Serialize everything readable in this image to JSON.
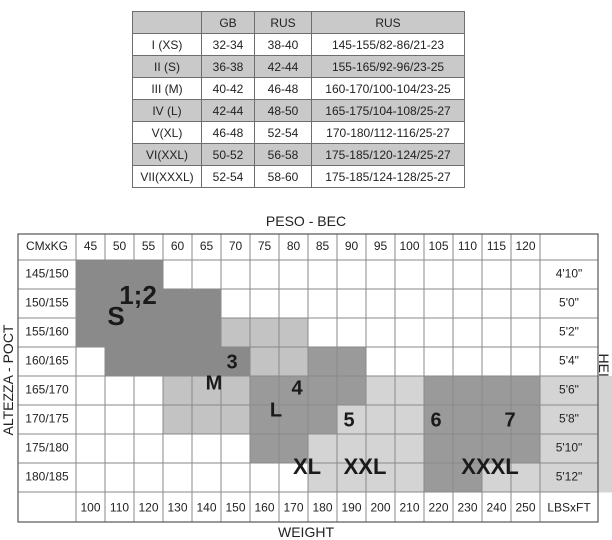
{
  "size_table": {
    "headers": [
      "",
      "GB",
      "RUS",
      "RUS"
    ],
    "rows": [
      [
        "I (XS)",
        "32-34",
        "38-40",
        "145-155/82-86/21-23"
      ],
      [
        "II (S)",
        "36-38",
        "42-44",
        "155-165/92-96/23-25"
      ],
      [
        "III (M)",
        "40-42",
        "46-48",
        "160-170/100-104/23-25"
      ],
      [
        "IV (L)",
        "42-44",
        "48-50",
        "165-175/104-108/25-27"
      ],
      [
        "V(XL)",
        "46-48",
        "52-54",
        "170-180/112-116/25-27"
      ],
      [
        "VI(XXL)",
        "50-52",
        "56-58",
        "175-185/120-124/25-27"
      ],
      [
        "VII(XXXL)",
        "52-54",
        "58-60",
        "175-185/124-128/25-27"
      ]
    ]
  },
  "chart": {
    "top_title": "PESO - BEC",
    "bottom_title": "WEIGHT",
    "left_title": "ALTEZZA - POCT",
    "right_title": "HEIGHT",
    "corner_top_left": "CMxKG",
    "corner_bottom_right": "LBSxFT",
    "weights_kg": [
      "45",
      "50",
      "55",
      "60",
      "65",
      "70",
      "75",
      "80",
      "85",
      "90",
      "95",
      "100",
      "105",
      "110",
      "115",
      "120"
    ],
    "weights_lbs": [
      "100",
      "110",
      "120",
      "130",
      "140",
      "150",
      "160",
      "170",
      "180",
      "190",
      "200",
      "210",
      "220",
      "230",
      "240",
      "250"
    ],
    "heights_cm": [
      "145/150",
      "150/155",
      "155/160",
      "160/165",
      "165/170",
      "170/175",
      "175/180",
      "180/185"
    ],
    "heights_ft": [
      "4'10\"",
      "5'0\"",
      "5'2\"",
      "5'4\"",
      "5'6\"",
      "5'8\"",
      "5'10\"",
      "5'12\""
    ],
    "colors": {
      "dark": "#8a8a8a",
      "mid": "#9a9a9a",
      "light": "#c3c3c3",
      "lighter": "#d4d4d4"
    },
    "zones": [
      {
        "label": "1;2",
        "sub": "S",
        "shade": "dark",
        "cells": [
          [
            0,
            0
          ],
          [
            0,
            1
          ],
          [
            0,
            2
          ],
          [
            1,
            0
          ],
          [
            1,
            1
          ],
          [
            1,
            2
          ],
          [
            1,
            3
          ],
          [
            1,
            4
          ],
          [
            2,
            0
          ],
          [
            2,
            1
          ],
          [
            2,
            2
          ],
          [
            2,
            3
          ],
          [
            2,
            4
          ],
          [
            3,
            1
          ],
          [
            3,
            2
          ],
          [
            3,
            3
          ],
          [
            3,
            4
          ],
          [
            3,
            5
          ]
        ]
      },
      {
        "label": "3",
        "sub": "M",
        "shade": "light",
        "cells": [
          [
            2,
            5
          ],
          [
            2,
            6
          ],
          [
            2,
            7
          ],
          [
            3,
            6
          ],
          [
            3,
            7
          ],
          [
            4,
            3
          ],
          [
            4,
            4
          ],
          [
            4,
            5
          ],
          [
            5,
            3
          ],
          [
            5,
            4
          ],
          [
            5,
            5
          ]
        ]
      },
      {
        "label": "4",
        "sub": "L",
        "shade": "mid",
        "cells": [
          [
            3,
            8
          ],
          [
            3,
            9
          ],
          [
            4,
            6
          ],
          [
            4,
            7
          ],
          [
            4,
            8
          ],
          [
            4,
            9
          ],
          [
            5,
            6
          ],
          [
            5,
            7
          ],
          [
            5,
            8
          ],
          [
            6,
            6
          ],
          [
            6,
            7
          ]
        ]
      },
      {
        "label": "5",
        "sub": "XL",
        "shade": "lighter",
        "cells": [
          [
            4,
            10
          ],
          [
            4,
            11
          ],
          [
            5,
            9
          ],
          [
            5,
            10
          ],
          [
            5,
            11
          ],
          [
            6,
            8
          ],
          [
            6,
            9
          ],
          [
            6,
            10
          ],
          [
            6,
            11
          ],
          [
            7,
            8
          ],
          [
            7,
            9
          ],
          [
            7,
            10
          ],
          [
            7,
            11
          ]
        ]
      },
      {
        "label": "6",
        "sub": "XXL",
        "shade": "mid",
        "cells": [
          [
            4,
            12
          ],
          [
            4,
            13
          ],
          [
            4,
            14
          ],
          [
            4,
            15
          ],
          [
            5,
            12
          ],
          [
            5,
            13
          ],
          [
            5,
            14
          ],
          [
            5,
            15
          ],
          [
            6,
            12
          ],
          [
            6,
            13
          ],
          [
            6,
            14
          ],
          [
            6,
            15
          ],
          [
            7,
            12
          ],
          [
            7,
            13
          ]
        ]
      },
      {
        "label": "7",
        "sub": "XXXL",
        "shade": "lighter",
        "cells": [
          [
            4,
            16
          ],
          [
            4,
            17
          ],
          [
            4,
            18
          ],
          [
            5,
            16
          ],
          [
            5,
            17
          ],
          [
            5,
            18
          ],
          [
            6,
            16
          ],
          [
            6,
            17
          ],
          [
            6,
            18
          ],
          [
            7,
            14
          ],
          [
            7,
            15
          ],
          [
            7,
            16
          ],
          [
            7,
            17
          ],
          [
            7,
            18
          ]
        ]
      }
    ]
  }
}
